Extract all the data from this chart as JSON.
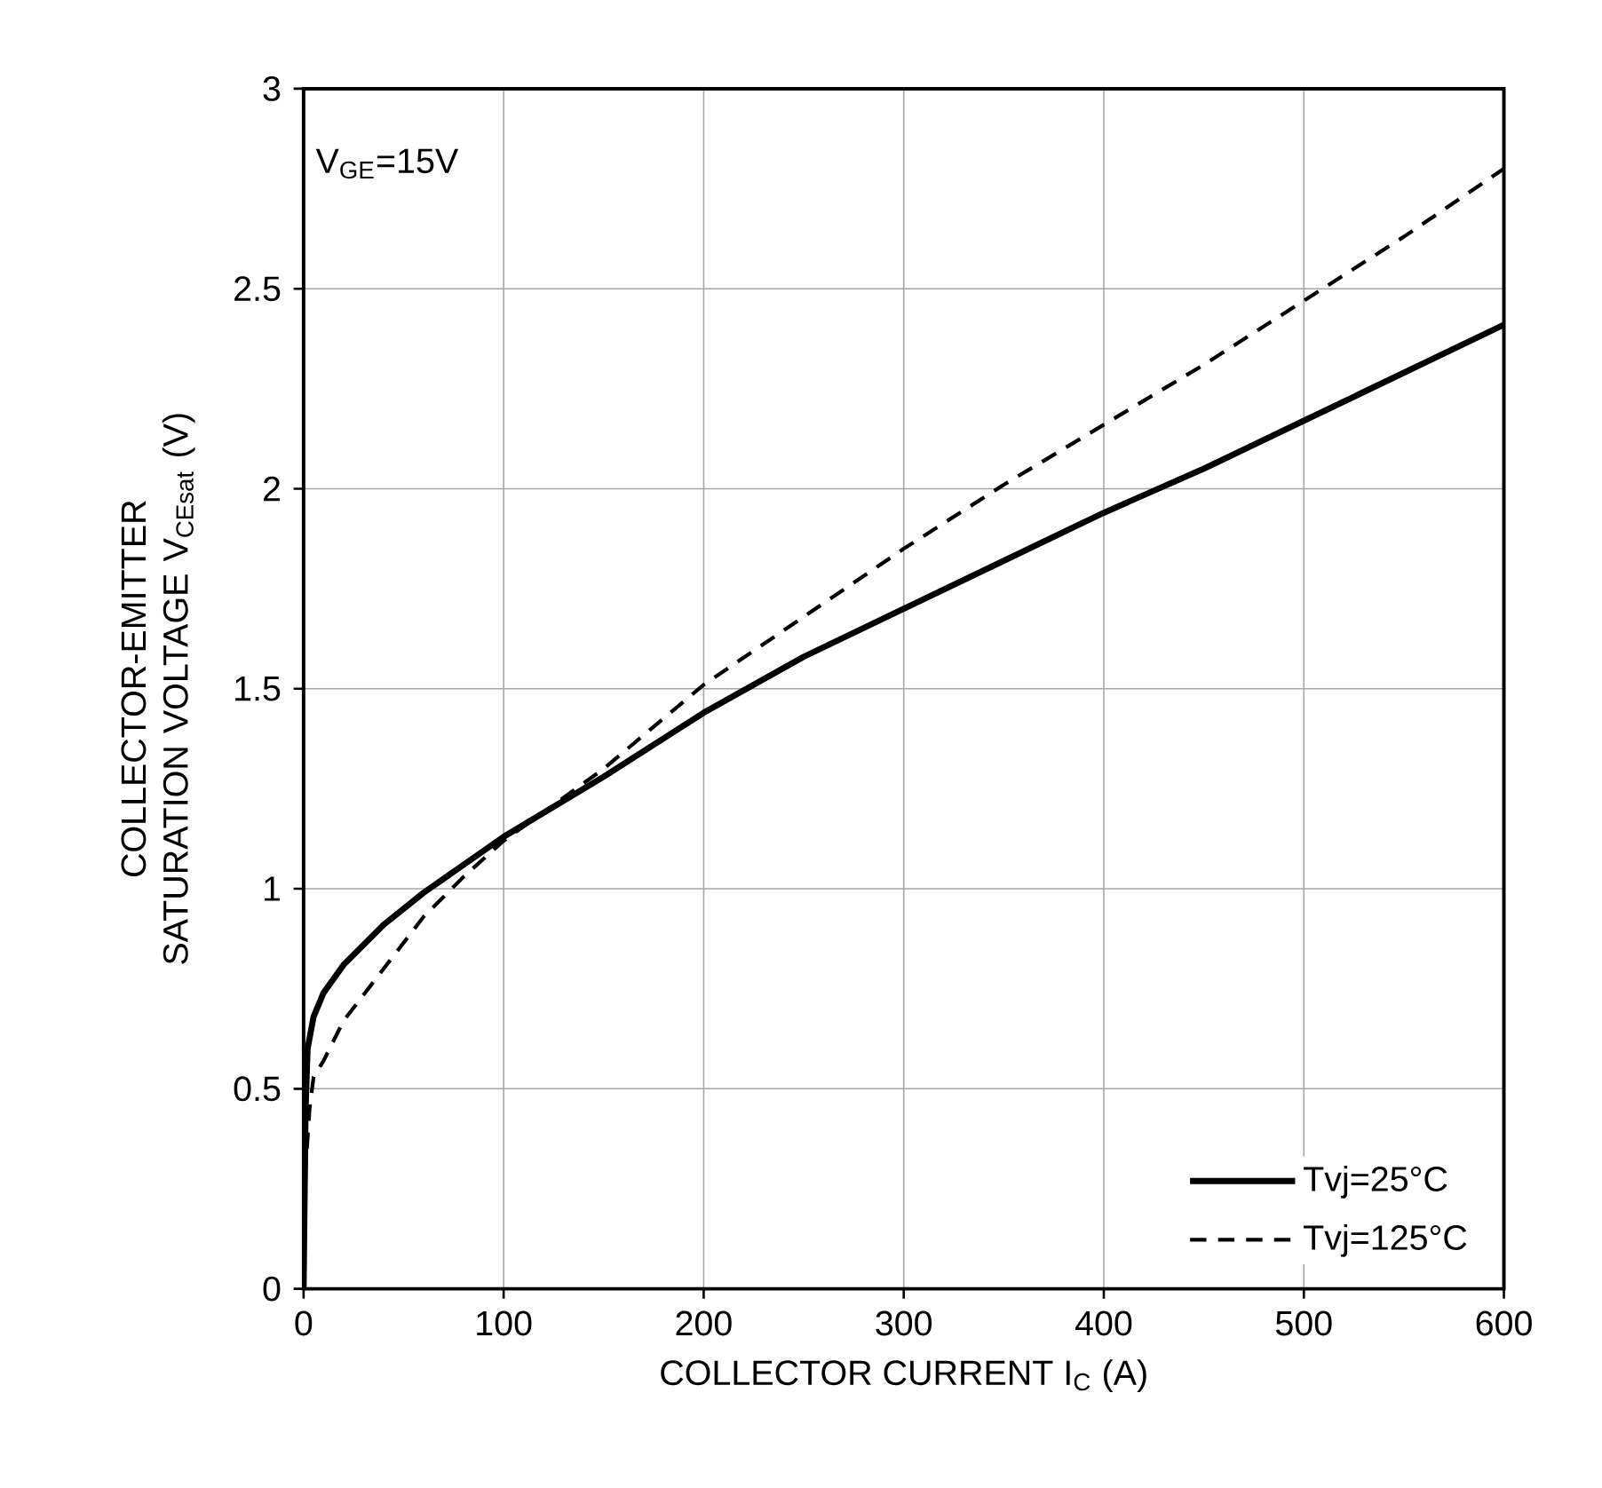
{
  "chart_data": {
    "type": "line",
    "xlabel": "COLLECTOR CURRENT I$_{C}$ (A)",
    "ylabel": "COLLECTOR-EMITTER SATURATION VOLTAGE V$_{CEsat}$ (V)",
    "annotations": [
      "V$_{GE}$=15V"
    ],
    "xlim": [
      0,
      600
    ],
    "ylim": [
      0,
      3
    ],
    "xticks": [
      0,
      100,
      200,
      300,
      400,
      500,
      600
    ],
    "yticks": [
      0,
      0.5,
      1,
      1.5,
      2,
      2.5,
      3
    ],
    "grid": true,
    "legend": "bottom right",
    "marker": "none",
    "series": [
      {
        "name": "Tvj=25°C",
        "color": "#000000",
        "line_style": "solid",
        "x": [
          0,
          1,
          2,
          5,
          10,
          20,
          40,
          60,
          80,
          100,
          150,
          200,
          250,
          300,
          350,
          400,
          450,
          500,
          550,
          600
        ],
        "values": [
          0,
          0.45,
          0.6,
          0.68,
          0.74,
          0.81,
          0.91,
          0.99,
          1.06,
          1.13,
          1.28,
          1.44,
          1.58,
          1.7,
          1.82,
          1.94,
          2.05,
          2.17,
          2.29,
          2.41
        ]
      },
      {
        "name": "Tvj=125°C",
        "color": "#000000",
        "line_style": "dashed",
        "x": [
          0,
          1,
          3,
          5,
          10,
          20,
          40,
          60,
          80,
          100,
          150,
          200,
          250,
          300,
          350,
          400,
          450,
          500,
          550,
          600
        ],
        "values": [
          0,
          0.3,
          0.45,
          0.53,
          0.57,
          0.67,
          0.8,
          0.93,
          1.03,
          1.12,
          1.3,
          1.51,
          1.68,
          1.85,
          2.01,
          2.16,
          2.31,
          2.47,
          2.63,
          2.8
        ]
      }
    ]
  }
}
